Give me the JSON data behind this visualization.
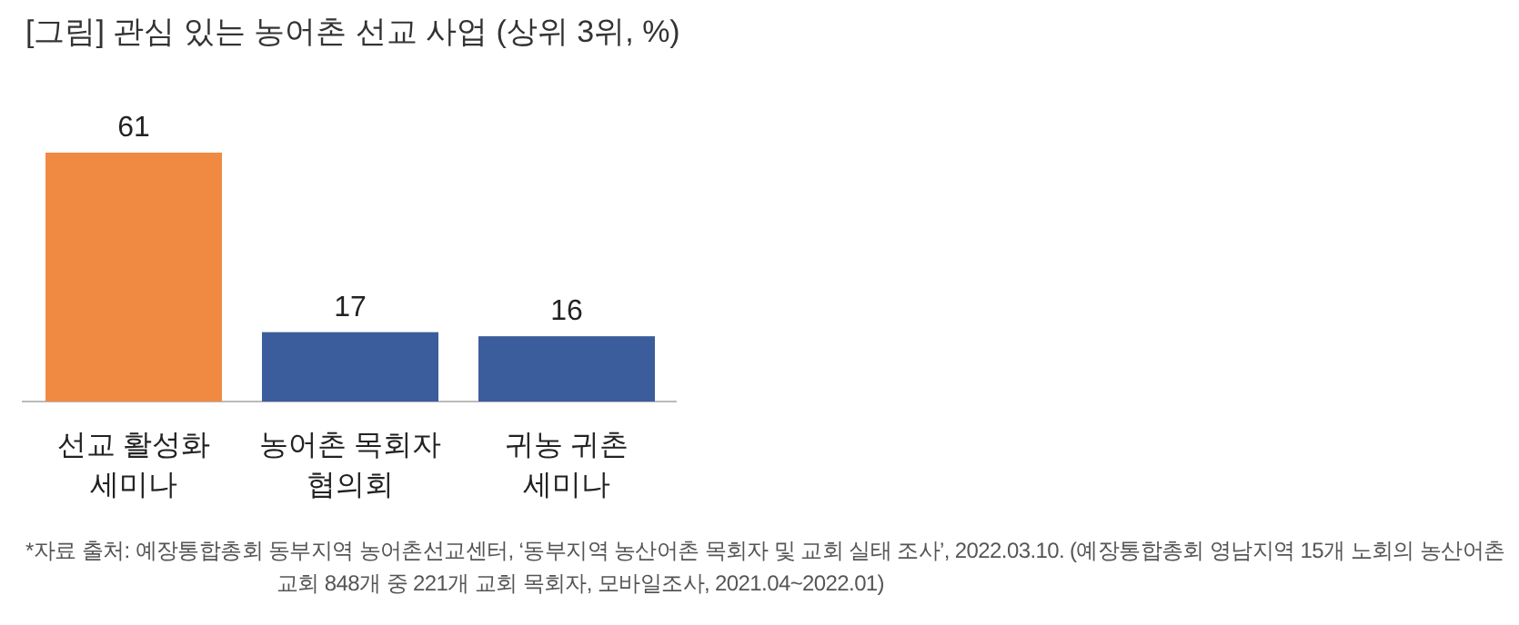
{
  "chart_data": {
    "type": "bar",
    "title": "[그림] 관심 있는 농어촌 선교 사업 (상위 3위, %)",
    "categories": [
      "선교 활성화 세미나",
      "농어촌 목회자 협의회",
      "귀농 귀촌 세미나"
    ],
    "values": [
      61,
      17,
      16
    ],
    "colors": [
      "#f08a43",
      "#3c5d9c",
      "#3c5d9c"
    ],
    "data_labels": true,
    "annotations": [
      "*자료 출처: 예장통합총회 동부지역 농어촌선교센터, ‘동부지역 농산어촌 목회자 및 교회 실태 조사’, 2022.03.10. (예장통합총회 영남지역 15개 노회의 농산어촌 교회 848개 중 221개 교회 목회자, 모바일조사, 2021.04~2022.01)"
    ]
  }
}
